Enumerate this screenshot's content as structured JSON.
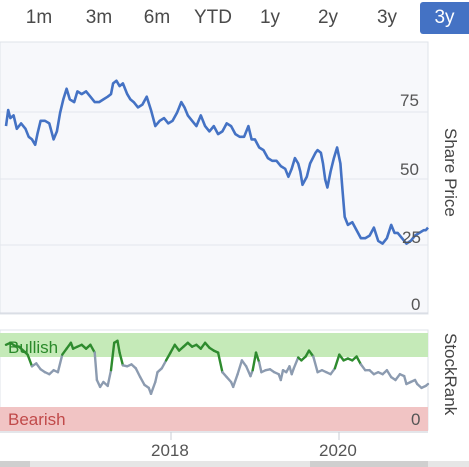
{
  "range_tabs": {
    "items": [
      "1m",
      "3m",
      "6m",
      "YTD",
      "1y",
      "2y",
      "3y",
      "3y"
    ],
    "selected": "3y"
  },
  "right_axis": {
    "price_label": "Share Price",
    "rank_label": "StockRank"
  },
  "chart_data": [
    {
      "type": "line",
      "title": "",
      "xlabel": "",
      "ylabel": "Share Price",
      "x_ticks": [
        "2018",
        "2020"
      ],
      "y_ticks": [
        0,
        25,
        50,
        75
      ],
      "ylim": [
        0,
        100
      ],
      "xlim": [
        2017.0,
        2020.9
      ],
      "grid": true,
      "series": [
        {
          "name": "",
          "color": "#4472c4",
          "points": [
            [
              2017.0,
              70
            ],
            [
              2017.02,
              76
            ],
            [
              2017.04,
              73
            ],
            [
              2017.07,
              74
            ],
            [
              2017.1,
              69
            ],
            [
              2017.14,
              71
            ],
            [
              2017.18,
              69
            ],
            [
              2017.21,
              66
            ],
            [
              2017.24,
              65
            ],
            [
              2017.27,
              63
            ],
            [
              2017.29,
              67
            ],
            [
              2017.32,
              72
            ],
            [
              2017.36,
              72
            ],
            [
              2017.4,
              71
            ],
            [
              2017.44,
              65
            ],
            [
              2017.47,
              68
            ],
            [
              2017.5,
              75
            ],
            [
              2017.53,
              80
            ],
            [
              2017.56,
              84
            ],
            [
              2017.59,
              80
            ],
            [
              2017.63,
              79
            ],
            [
              2017.66,
              83
            ],
            [
              2017.7,
              82
            ],
            [
              2017.74,
              83
            ],
            [
              2017.78,
              81
            ],
            [
              2017.82,
              79
            ],
            [
              2017.86,
              79
            ],
            [
              2017.9,
              80
            ],
            [
              2017.94,
              81
            ],
            [
              2017.97,
              82
            ],
            [
              2017.99,
              86
            ],
            [
              2018.02,
              87
            ],
            [
              2018.05,
              85
            ],
            [
              2018.08,
              86
            ],
            [
              2018.12,
              82
            ],
            [
              2018.15,
              80
            ],
            [
              2018.18,
              79
            ],
            [
              2018.22,
              77
            ],
            [
              2018.26,
              78
            ],
            [
              2018.3,
              81
            ],
            [
              2018.34,
              76
            ],
            [
              2018.38,
              70
            ],
            [
              2018.42,
              72
            ],
            [
              2018.46,
              73
            ],
            [
              2018.5,
              71
            ],
            [
              2018.54,
              72
            ],
            [
              2018.58,
              75
            ],
            [
              2018.62,
              79
            ],
            [
              2018.65,
              77
            ],
            [
              2018.68,
              74
            ],
            [
              2018.72,
              72
            ],
            [
              2018.76,
              70
            ],
            [
              2018.8,
              74
            ],
            [
              2018.84,
              70
            ],
            [
              2018.88,
              68
            ],
            [
              2018.92,
              70
            ],
            [
              2018.96,
              67
            ],
            [
              2019.0,
              68
            ],
            [
              2019.04,
              71
            ],
            [
              2019.08,
              70
            ],
            [
              2019.12,
              67
            ],
            [
              2019.16,
              66
            ],
            [
              2019.2,
              66
            ],
            [
              2019.24,
              70
            ],
            [
              2019.27,
              65
            ],
            [
              2019.3,
              65
            ],
            [
              2019.34,
              62
            ],
            [
              2019.38,
              61
            ],
            [
              2019.42,
              58
            ],
            [
              2019.46,
              57
            ],
            [
              2019.5,
              57
            ],
            [
              2019.54,
              55
            ],
            [
              2019.58,
              54
            ],
            [
              2019.61,
              51
            ],
            [
              2019.64,
              54
            ],
            [
              2019.67,
              58
            ],
            [
              2019.7,
              56
            ],
            [
              2019.72,
              53
            ],
            [
              2019.74,
              48
            ],
            [
              2019.78,
              51
            ],
            [
              2019.81,
              56
            ],
            [
              2019.86,
              60
            ],
            [
              2019.88,
              61
            ],
            [
              2019.91,
              60
            ],
            [
              2019.93,
              56
            ],
            [
              2019.95,
              50
            ],
            [
              2019.97,
              47
            ],
            [
              2020.0,
              53
            ],
            [
              2020.03,
              58
            ],
            [
              2020.06,
              62
            ],
            [
              2020.09,
              56
            ],
            [
              2020.11,
              46
            ],
            [
              2020.13,
              36
            ],
            [
              2020.16,
              33
            ],
            [
              2020.2,
              34
            ],
            [
              2020.24,
              31
            ],
            [
              2020.28,
              28
            ],
            [
              2020.32,
              28
            ],
            [
              2020.36,
              29
            ],
            [
              2020.4,
              32
            ],
            [
              2020.44,
              27
            ],
            [
              2020.48,
              26
            ],
            [
              2020.52,
              28
            ],
            [
              2020.56,
              33
            ],
            [
              2020.59,
              30
            ],
            [
              2020.62,
              30
            ],
            [
              2020.66,
              28
            ],
            [
              2020.7,
              26
            ],
            [
              2020.74,
              27
            ],
            [
              2020.78,
              29
            ],
            [
              2020.82,
              30
            ],
            [
              2020.86,
              31
            ],
            [
              2020.88,
              31
            ],
            [
              2020.9,
              32
            ]
          ]
        }
      ]
    },
    {
      "type": "line",
      "title": "",
      "ylabel": "StockRank",
      "y_ticks": [
        0
      ],
      "ylim": [
        0,
        100
      ],
      "zones": [
        {
          "label": "Bullish",
          "from": 70,
          "to": 100,
          "color": "#c5eab8",
          "text_color": "#2b8a2b"
        },
        {
          "label": "Bearish",
          "from": 0,
          "to": 25,
          "color": "#f1c4c4",
          "text_color": "#c14a4a"
        }
      ],
      "threshold": 70,
      "colors": {
        "above": "#2e8b2e",
        "below": "#8c9bb0"
      },
      "series": [
        {
          "name": "",
          "points": [
            [
              2017.0,
              88
            ],
            [
              2017.04,
              90
            ],
            [
              2017.08,
              87
            ],
            [
              2017.12,
              86
            ],
            [
              2017.16,
              82
            ],
            [
              2017.2,
              78
            ],
            [
              2017.24,
              66
            ],
            [
              2017.28,
              69
            ],
            [
              2017.32,
              63
            ],
            [
              2017.36,
              60
            ],
            [
              2017.4,
              58
            ],
            [
              2017.44,
              62
            ],
            [
              2017.48,
              60
            ],
            [
              2017.52,
              78
            ],
            [
              2017.56,
              84
            ],
            [
              2017.6,
              90
            ],
            [
              2017.62,
              84
            ],
            [
              2017.66,
              86
            ],
            [
              2017.7,
              88
            ],
            [
              2017.74,
              84
            ],
            [
              2017.78,
              88
            ],
            [
              2017.82,
              80
            ],
            [
              2017.84,
              52
            ],
            [
              2017.87,
              45
            ],
            [
              2017.9,
              50
            ],
            [
              2017.94,
              46
            ],
            [
              2017.97,
              62
            ],
            [
              2018.0,
              90
            ],
            [
              2018.03,
              92
            ],
            [
              2018.05,
              80
            ],
            [
              2018.08,
              67
            ],
            [
              2018.12,
              66
            ],
            [
              2018.16,
              68
            ],
            [
              2018.2,
              64
            ],
            [
              2018.24,
              55
            ],
            [
              2018.28,
              47
            ],
            [
              2018.32,
              44
            ],
            [
              2018.34,
              38
            ],
            [
              2018.38,
              50
            ],
            [
              2018.4,
              60
            ],
            [
              2018.44,
              64
            ],
            [
              2018.48,
              72
            ],
            [
              2018.52,
              80
            ],
            [
              2018.56,
              88
            ],
            [
              2018.6,
              82
            ],
            [
              2018.64,
              86
            ],
            [
              2018.68,
              90
            ],
            [
              2018.72,
              86
            ],
            [
              2018.76,
              88
            ],
            [
              2018.8,
              84
            ],
            [
              2018.84,
              90
            ],
            [
              2018.88,
              85
            ],
            [
              2018.92,
              82
            ],
            [
              2018.96,
              80
            ],
            [
              2019.0,
              60
            ],
            [
              2019.04,
              55
            ],
            [
              2019.08,
              50
            ],
            [
              2019.1,
              45
            ],
            [
              2019.14,
              58
            ],
            [
              2019.18,
              72
            ],
            [
              2019.22,
              66
            ],
            [
              2019.26,
              56
            ],
            [
              2019.28,
              62
            ],
            [
              2019.31,
              80
            ],
            [
              2019.34,
              70
            ],
            [
              2019.36,
              60
            ],
            [
              2019.4,
              62
            ],
            [
              2019.44,
              63
            ],
            [
              2019.48,
              60
            ],
            [
              2019.52,
              58
            ],
            [
              2019.54,
              52
            ],
            [
              2019.56,
              62
            ],
            [
              2019.59,
              60
            ],
            [
              2019.62,
              66
            ],
            [
              2019.64,
              58
            ],
            [
              2019.66,
              64
            ],
            [
              2019.7,
              75
            ],
            [
              2019.73,
              72
            ],
            [
              2019.77,
              76
            ],
            [
              2019.8,
              82
            ],
            [
              2019.84,
              76
            ],
            [
              2019.88,
              60
            ],
            [
              2019.92,
              62
            ],
            [
              2019.96,
              60
            ],
            [
              2020.0,
              58
            ],
            [
              2020.04,
              64
            ],
            [
              2020.08,
              78
            ],
            [
              2020.12,
              72
            ],
            [
              2020.16,
              74
            ],
            [
              2020.2,
              72
            ],
            [
              2020.24,
              76
            ],
            [
              2020.28,
              68
            ],
            [
              2020.32,
              62
            ],
            [
              2020.36,
              62
            ],
            [
              2020.4,
              58
            ],
            [
              2020.44,
              60
            ],
            [
              2020.48,
              58
            ],
            [
              2020.52,
              62
            ],
            [
              2020.56,
              55
            ],
            [
              2020.6,
              52
            ],
            [
              2020.64,
              58
            ],
            [
              2020.68,
              56
            ],
            [
              2020.7,
              48
            ],
            [
              2020.74,
              50
            ],
            [
              2020.78,
              52
            ],
            [
              2020.8,
              48
            ],
            [
              2020.84,
              44
            ],
            [
              2020.88,
              46
            ],
            [
              2020.9,
              48
            ]
          ]
        }
      ]
    }
  ]
}
